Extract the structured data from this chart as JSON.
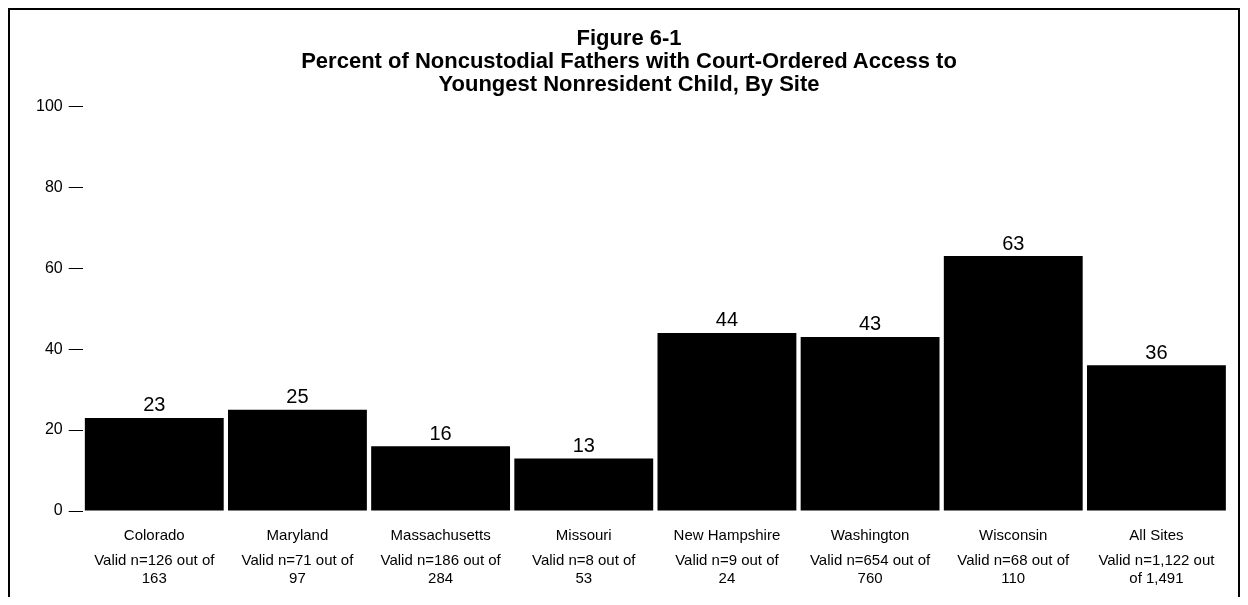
{
  "chart_data": {
    "type": "bar",
    "title": "Figure 6-1\nPercent of Noncustodial Fathers with Court-Ordered Access to\nYoungest Nonresident Child, By Site",
    "categories": [
      "Colorado",
      "Maryland",
      "Massachusetts",
      "Missouri",
      "New Hampshire",
      "Washington",
      "Wisconsin",
      "All Sites"
    ],
    "values": [
      23,
      25,
      16,
      13,
      44,
      43,
      63,
      36
    ],
    "color": "#000000",
    "ylim": [
      0,
      100
    ],
    "yticks": [
      0,
      20,
      40,
      60,
      80,
      100
    ],
    "grid": false,
    "data_labels": true,
    "annotations": [
      "Valid n=126 out of 163",
      "Valid n=71 out of 97",
      "Valid n=186 out of 284",
      "Valid n=8 out of 53",
      "Valid n=9 out of 24",
      "Valid n=654 out of 760",
      "Valid n=68 out of 110",
      "Valid n=1,122 out of 1,491"
    ]
  }
}
